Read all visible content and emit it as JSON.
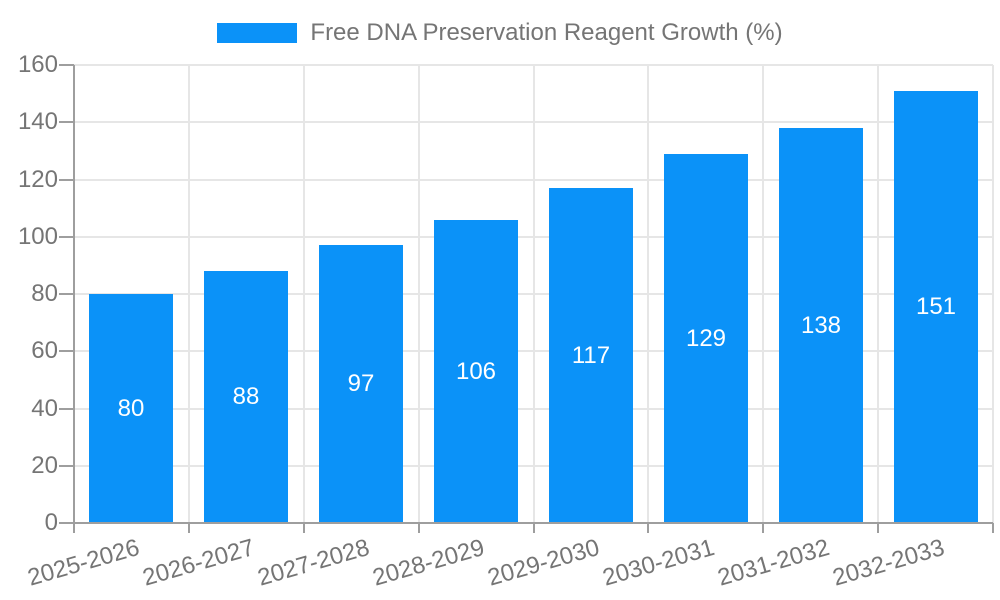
{
  "chart_data": {
    "type": "bar",
    "title": "Free DNA Preservation Reagent Growth (%)",
    "categories": [
      "2025-2026",
      "2026-2027",
      "2027-2028",
      "2028-2029",
      "2029-2030",
      "2030-2031",
      "2031-2032",
      "2032-2033"
    ],
    "values": [
      80,
      88,
      97,
      106,
      117,
      129,
      138,
      151
    ],
    "ylim": [
      0,
      160
    ],
    "yticks": [
      0,
      20,
      40,
      60,
      80,
      100,
      120,
      140,
      160
    ],
    "grid": true,
    "legend_position": "top",
    "value_labels": [
      "80",
      "88",
      "97",
      "106",
      "117",
      "129",
      "138",
      "151"
    ],
    "colors": {
      "bar": "#0b92f8",
      "grid": "#e6e6e6",
      "axis": "#9e9e9e",
      "label_text": "#757575",
      "value_label": "#ffffff",
      "background": "#ffffff"
    }
  }
}
